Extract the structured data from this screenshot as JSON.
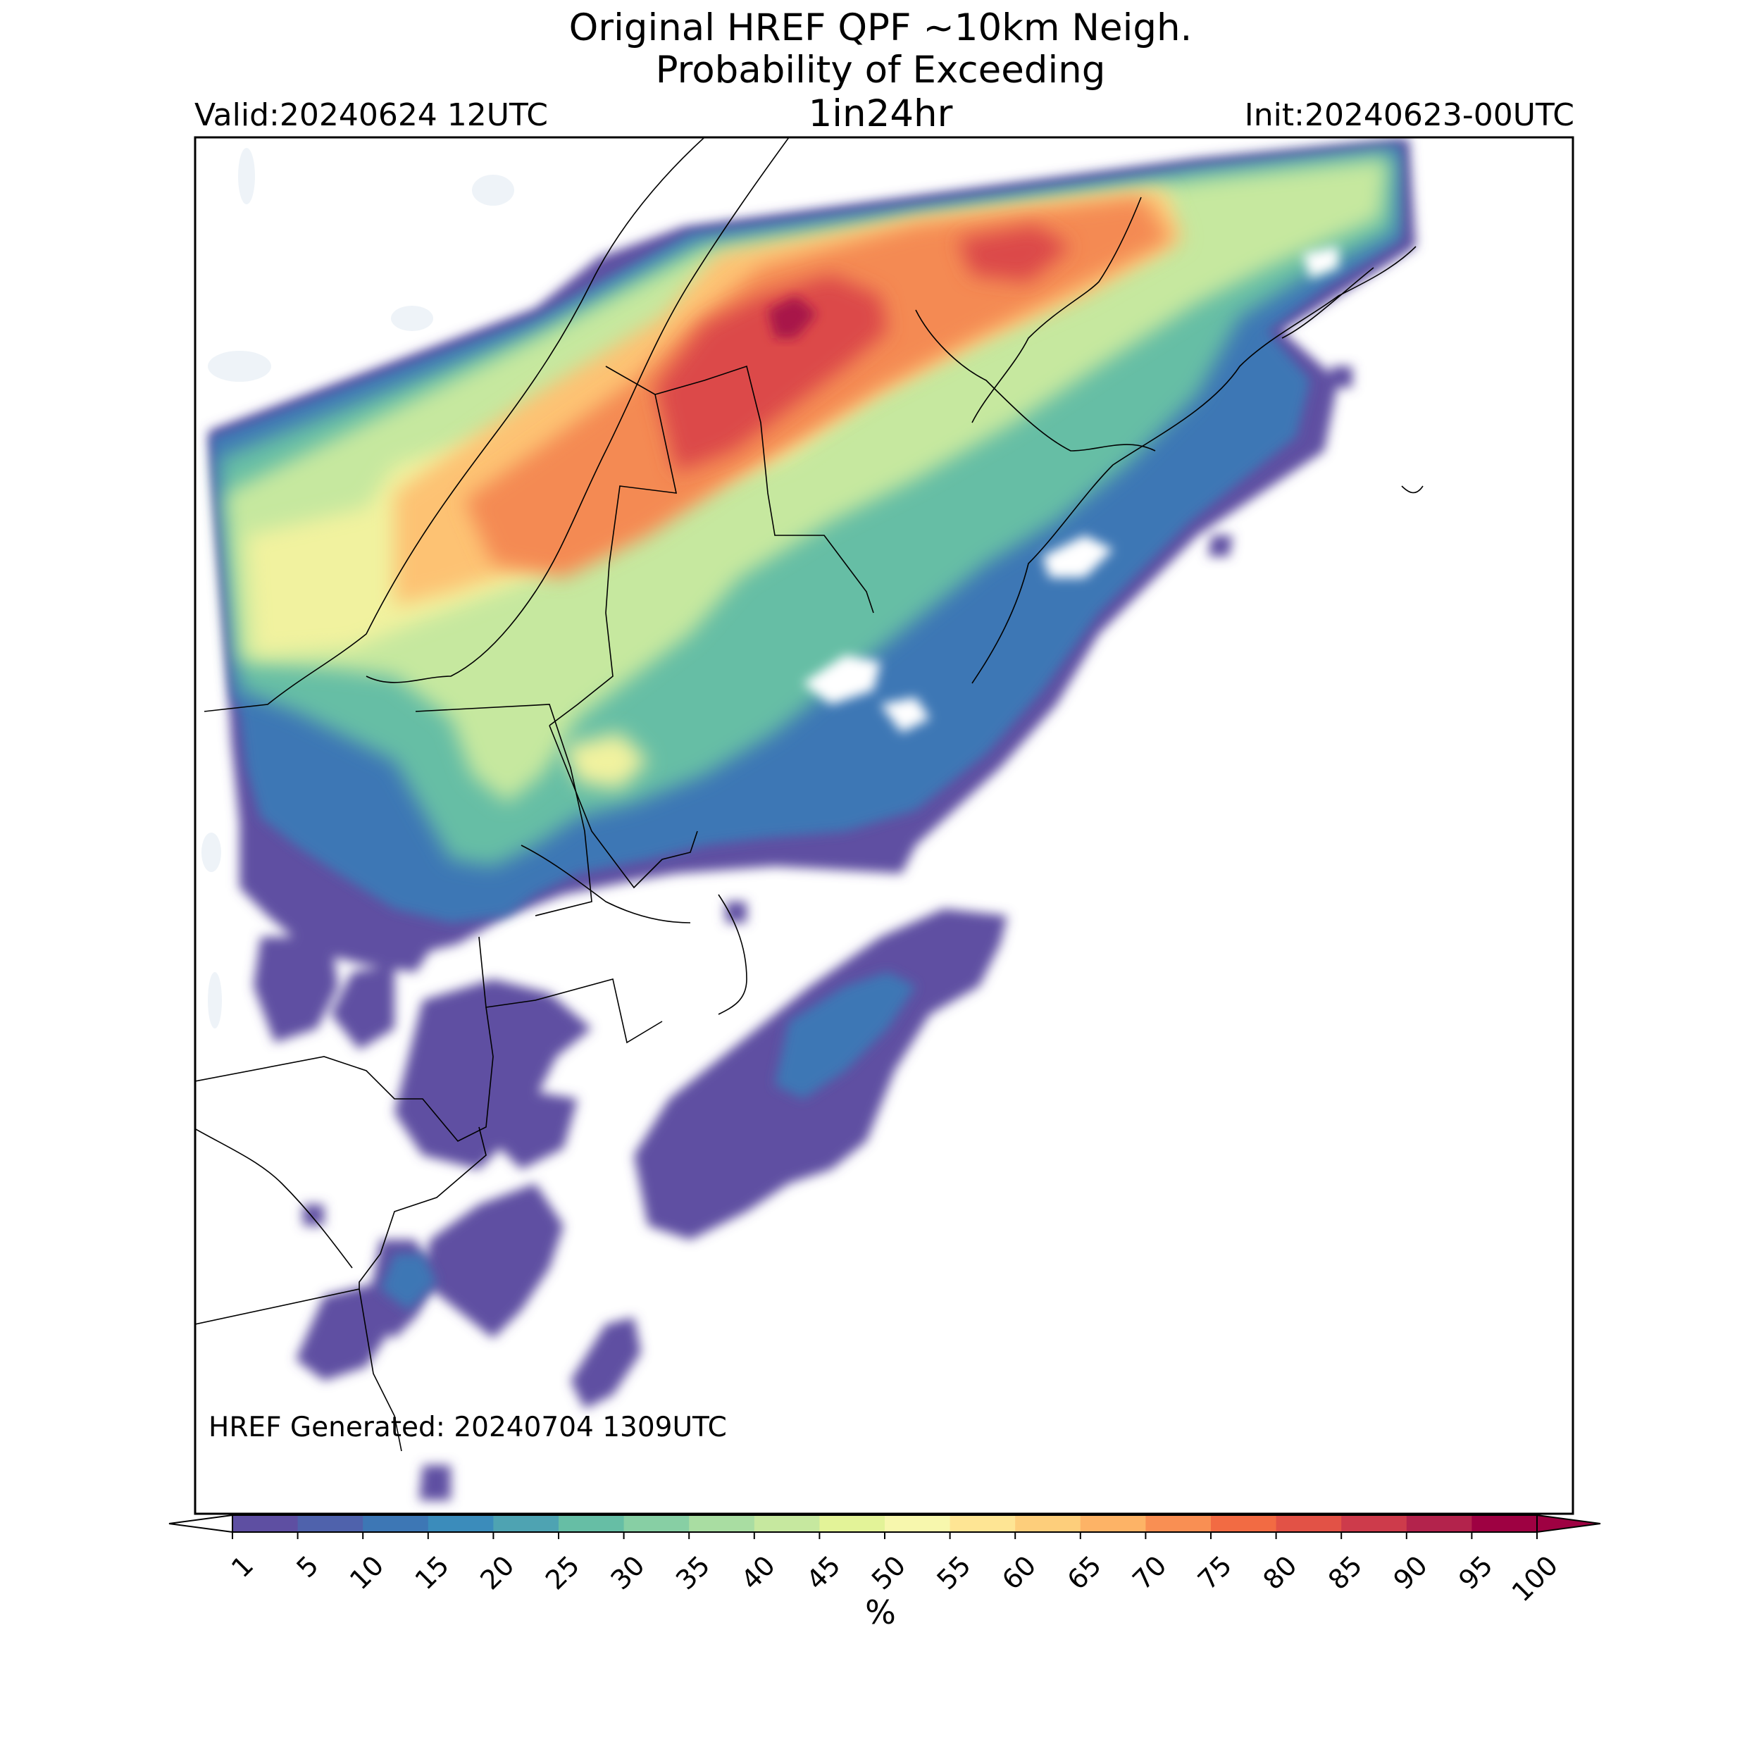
{
  "header": {
    "title_line1": "Original HREF QPF ~10km Neigh.",
    "title_line2": "Probability of Exceeding",
    "title_line3": "1in24hr",
    "valid": "Valid:20240624 12UTC",
    "init": "Init:20240623-00UTC"
  },
  "footer": {
    "generated": "HREF Generated: 20240704 1309UTC"
  },
  "colorbar": {
    "unit": "%",
    "ticks": [
      "1",
      "5",
      "10",
      "15",
      "20",
      "25",
      "30",
      "35",
      "40",
      "45",
      "50",
      "55",
      "60",
      "65",
      "70",
      "75",
      "80",
      "85",
      "90",
      "95",
      "100"
    ],
    "colors": [
      "#5e4fa2",
      "#4f62ac",
      "#3d77b5",
      "#3b8cbb",
      "#4ea3b2",
      "#66bea5",
      "#87cfa4",
      "#a9dda2",
      "#c6e89f",
      "#e3f398",
      "#f7f7ad",
      "#fee594",
      "#fdce7b",
      "#fdb366",
      "#f98f53",
      "#f26b43",
      "#e25246",
      "#cd3b4b",
      "#b3234c",
      "#9e0142"
    ]
  }
}
